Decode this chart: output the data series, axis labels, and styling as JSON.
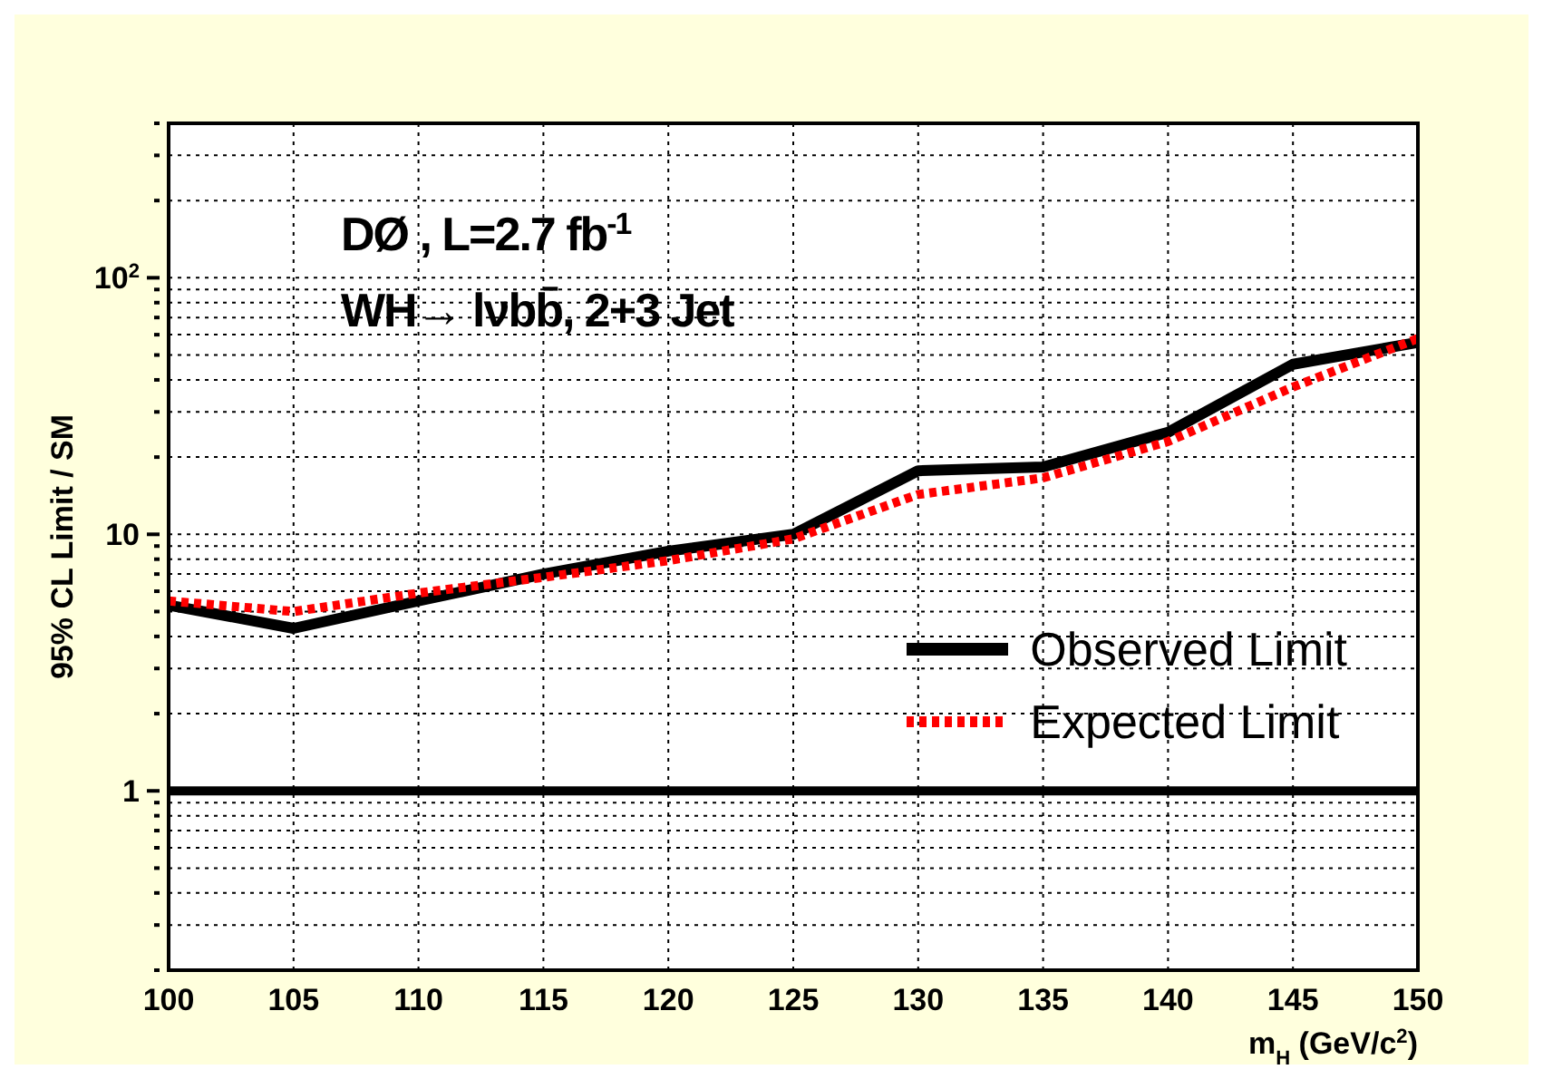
{
  "chart_data": {
    "type": "line",
    "xlabel": "m$_{H}$ (GeV/c$^{2}$)",
    "ylabel": "95% CL  Limit / SM",
    "annotations": [
      "DØ , L=2.7 fb$^{-1}$",
      "WH→ lνbb̄, 2+3 Jet"
    ],
    "x": [
      100,
      105,
      110,
      115,
      120,
      125,
      130,
      135,
      140,
      145,
      150
    ],
    "series": [
      {
        "name": "Observed Limit",
        "color": "#000000",
        "line_style": "solid",
        "values": [
          5.3,
          4.3,
          5.5,
          7.0,
          8.6,
          10,
          17.7,
          18.3,
          25,
          46,
          56
        ]
      },
      {
        "name": "Expected Limit",
        "color": "#ff0000",
        "line_style": "dotted",
        "values": [
          5.5,
          5.0,
          5.9,
          6.8,
          7.9,
          9.6,
          14.3,
          16.6,
          23,
          37.5,
          58
        ]
      }
    ],
    "log": "y",
    "xlim": [
      100,
      150
    ],
    "xticks": [
      100,
      105,
      110,
      115,
      120,
      125,
      130,
      135,
      140,
      145,
      150
    ],
    "ylim": [
      0.2,
      400
    ],
    "yticks": [
      {
        "value": 0.2,
        "label": null
      },
      {
        "value": 0.3,
        "label": null
      },
      {
        "value": 0.4,
        "label": null
      },
      {
        "value": 0.5,
        "label": null
      },
      {
        "value": 0.6,
        "label": null
      },
      {
        "value": 0.7,
        "label": null
      },
      {
        "value": 0.8,
        "label": null
      },
      {
        "value": 0.9,
        "label": null
      },
      1,
      {
        "value": 2,
        "label": null
      },
      {
        "value": 3,
        "label": null
      },
      {
        "value": 4,
        "label": null
      },
      {
        "value": 5,
        "label": null
      },
      {
        "value": 6,
        "label": null
      },
      {
        "value": 7,
        "label": null
      },
      {
        "value": 8,
        "label": null
      },
      {
        "value": 9,
        "label": null
      },
      10,
      {
        "value": 20,
        "label": null
      },
      {
        "value": 30,
        "label": null
      },
      {
        "value": 40,
        "label": null
      },
      {
        "value": 50,
        "label": null
      },
      {
        "value": 60,
        "label": null
      },
      {
        "value": 70,
        "label": null
      },
      {
        "value": 80,
        "label": null
      },
      {
        "value": 90,
        "label": null
      },
      {
        "value": 100,
        "label": "10$^{2}$"
      },
      {
        "value": 200,
        "label": null
      },
      {
        "value": 300,
        "label": null
      },
      {
        "value": 400,
        "label": null
      }
    ],
    "ref_lines": [
      {
        "axis": "y",
        "value": 1,
        "color": "#000000",
        "line_style": "solid"
      }
    ],
    "grid": true,
    "legend": "bottom right",
    "marker": "none"
  }
}
